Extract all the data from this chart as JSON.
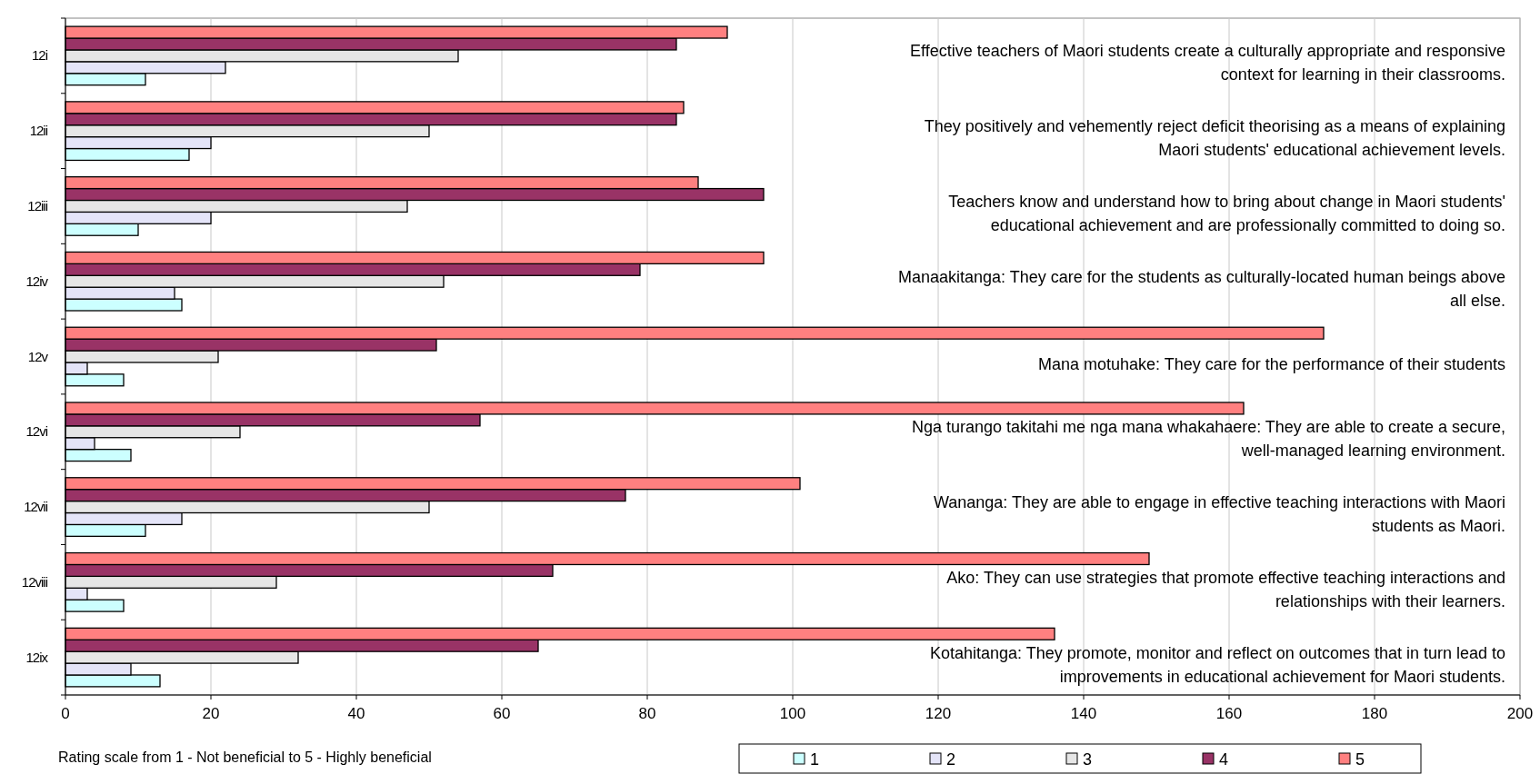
{
  "chart_data": {
    "type": "bar",
    "orientation": "horizontal",
    "categories": [
      "12i",
      "12ii",
      "12iii",
      "12iv",
      "12v",
      "12vi",
      "12vii",
      "12viii",
      "12ix"
    ],
    "series": [
      {
        "name": "1",
        "color": "#ccffff",
        "values": [
          11,
          17,
          10,
          16,
          8,
          9,
          11,
          8,
          13
        ]
      },
      {
        "name": "2",
        "color": "#e4e4f8",
        "values": [
          22,
          20,
          20,
          15,
          3,
          4,
          16,
          3,
          9
        ]
      },
      {
        "name": "3",
        "color": "#e6e6e6",
        "values": [
          54,
          50,
          47,
          52,
          21,
          24,
          50,
          29,
          32
        ]
      },
      {
        "name": "4",
        "color": "#993366",
        "values": [
          84,
          84,
          96,
          79,
          51,
          57,
          77,
          67,
          65
        ]
      },
      {
        "name": "5",
        "color": "#ff8080",
        "values": [
          91,
          85,
          87,
          96,
          173,
          162,
          101,
          149,
          136
        ]
      }
    ],
    "xlim": [
      0,
      200
    ],
    "xticks": [
      0,
      20,
      40,
      60,
      80,
      100,
      120,
      140,
      160,
      180,
      200
    ],
    "grid": "x",
    "legend": "bottom",
    "annotations": [
      "Effective teachers of Maori students create a culturally appropriate and responsive context for learning in their classrooms.",
      "They positively and vehemently reject deficit theorising as a means of explaining Maori students' educational achievement levels.",
      "Teachers know and understand how to bring about change in Maori students' educational achievement and are professionally committed to doing so.",
      "Manaakitanga: They care for the students as culturally-located human beings above all else.",
      "Mana motuhake: They care for the performance of their students",
      "Nga turango takitahi me nga mana whakahaere: They are able to create a secure, well-managed learning environment.",
      "Wananga: They are able to engage in effective teaching interactions with Maori students as Maori.",
      "Ako: They can use strategies that promote effective teaching interactions and relationships with their learners.",
      "Kotahitanga: They promote, monitor and reflect on outcomes that in turn lead to improvements in educational achievement for Maori students.",
      "Rating scale from 1 - Not beneficial to 5 - Highly beneficial"
    ]
  }
}
